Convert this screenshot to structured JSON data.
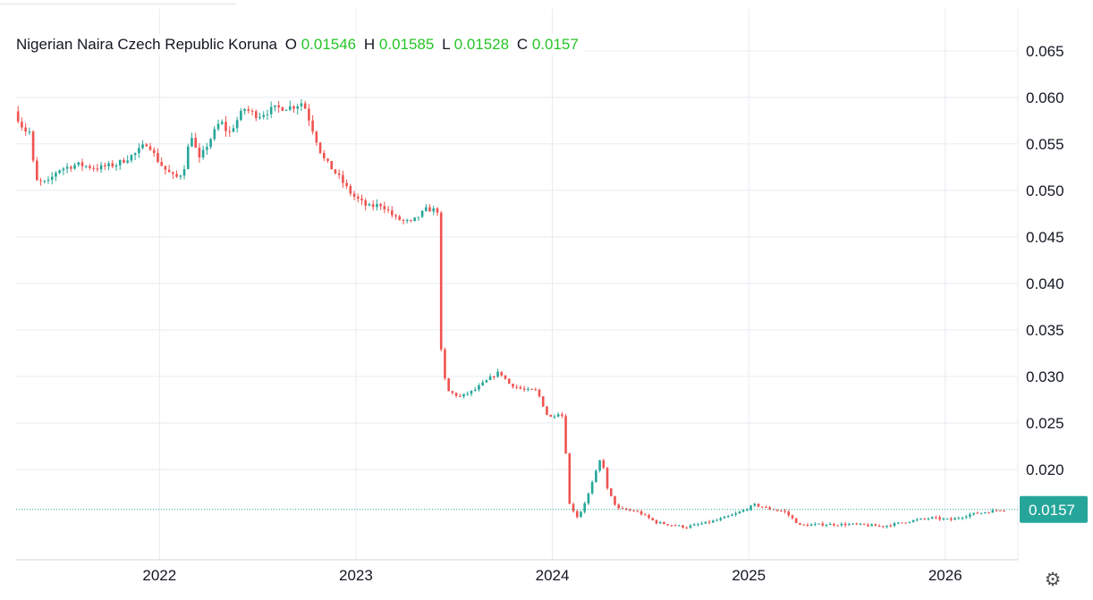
{
  "legend": {
    "symbol_name": "Nigerian Naira Czech Republic Koruna",
    "open_label": "O",
    "open": "0.01546",
    "high_label": "H",
    "high": "0.01585",
    "low_label": "L",
    "low": "0.01528",
    "close_label": "C",
    "close": "0.0157"
  },
  "colors": {
    "up": "#26a69a",
    "down": "#ef5350",
    "legend_value": "#26c426",
    "grid": "#e9ebf0",
    "last_price_badge": "#26a69a"
  },
  "icons": {
    "settings": "gear-icon"
  },
  "chart_data": {
    "type": "candlestick",
    "title": "",
    "xlabel": "",
    "ylabel": "",
    "grid": true,
    "y_axis_position": "right",
    "ylim": [
      0.0103,
      0.0695
    ],
    "y_ticks": [
      "0.020",
      "0.025",
      "0.030",
      "0.035",
      "0.040",
      "0.045",
      "0.050",
      "0.055",
      "0.060",
      "0.065"
    ],
    "x_ticks": [
      {
        "label": "2022",
        "t": 2022.0
      },
      {
        "label": "2023",
        "t": 2023.0
      },
      {
        "label": "2024",
        "t": 2024.0
      },
      {
        "label": "2025",
        "t": 2025.0
      },
      {
        "label": "2026",
        "t": 2026.0
      }
    ],
    "xlim": [
      2021.27,
      2026.37
    ],
    "last_price": {
      "label": "0.0157",
      "value": 0.0157
    },
    "series_points": [
      [
        2021.28,
        0.0585
      ],
      [
        2021.33,
        0.0565
      ],
      [
        2021.37,
        0.0562
      ],
      [
        2021.38,
        0.051
      ],
      [
        2021.45,
        0.0508
      ],
      [
        2021.5,
        0.0522
      ],
      [
        2021.6,
        0.0528
      ],
      [
        2021.7,
        0.0524
      ],
      [
        2021.8,
        0.0528
      ],
      [
        2021.9,
        0.054
      ],
      [
        2021.96,
        0.0552
      ],
      [
        2022.0,
        0.0535
      ],
      [
        2022.05,
        0.0522
      ],
      [
        2022.1,
        0.0513
      ],
      [
        2022.14,
        0.052
      ],
      [
        2022.18,
        0.0562
      ],
      [
        2022.22,
        0.0532
      ],
      [
        2022.27,
        0.0552
      ],
      [
        2022.33,
        0.0575
      ],
      [
        2022.37,
        0.056
      ],
      [
        2022.45,
        0.0588
      ],
      [
        2022.52,
        0.058
      ],
      [
        2022.6,
        0.0588
      ],
      [
        2022.7,
        0.059
      ],
      [
        2022.75,
        0.0595
      ],
      [
        2022.8,
        0.0565
      ],
      [
        2022.85,
        0.0535
      ],
      [
        2022.93,
        0.0515
      ],
      [
        2023.0,
        0.0495
      ],
      [
        2023.08,
        0.0482
      ],
      [
        2023.15,
        0.0485
      ],
      [
        2023.22,
        0.047
      ],
      [
        2023.3,
        0.0465
      ],
      [
        2023.38,
        0.048
      ],
      [
        2023.44,
        0.0478
      ],
      [
        2023.45,
        0.0332
      ],
      [
        2023.48,
        0.0285
      ],
      [
        2023.55,
        0.0278
      ],
      [
        2023.62,
        0.0285
      ],
      [
        2023.7,
        0.0298
      ],
      [
        2023.75,
        0.0305
      ],
      [
        2023.8,
        0.0292
      ],
      [
        2023.88,
        0.0285
      ],
      [
        2023.94,
        0.0285
      ],
      [
        2024.0,
        0.0255
      ],
      [
        2024.06,
        0.0262
      ],
      [
        2024.08,
        0.0252
      ],
      [
        2024.1,
        0.0165
      ],
      [
        2024.15,
        0.0148
      ],
      [
        2024.2,
        0.0172
      ],
      [
        2024.27,
        0.0215
      ],
      [
        2024.3,
        0.0178
      ],
      [
        2024.35,
        0.0158
      ],
      [
        2024.45,
        0.0155
      ],
      [
        2024.55,
        0.0143
      ],
      [
        2024.7,
        0.0138
      ],
      [
        2024.85,
        0.0145
      ],
      [
        2024.95,
        0.0152
      ],
      [
        2025.05,
        0.0162
      ],
      [
        2025.12,
        0.0158
      ],
      [
        2025.2,
        0.0155
      ],
      [
        2025.28,
        0.014
      ],
      [
        2025.4,
        0.0141
      ],
      [
        2025.55,
        0.0141
      ],
      [
        2025.7,
        0.0139
      ],
      [
        2025.85,
        0.0145
      ],
      [
        2025.95,
        0.0148
      ],
      [
        2026.05,
        0.0146
      ],
      [
        2026.15,
        0.0152
      ],
      [
        2026.22,
        0.0154
      ],
      [
        2026.3,
        0.0157
      ]
    ]
  }
}
